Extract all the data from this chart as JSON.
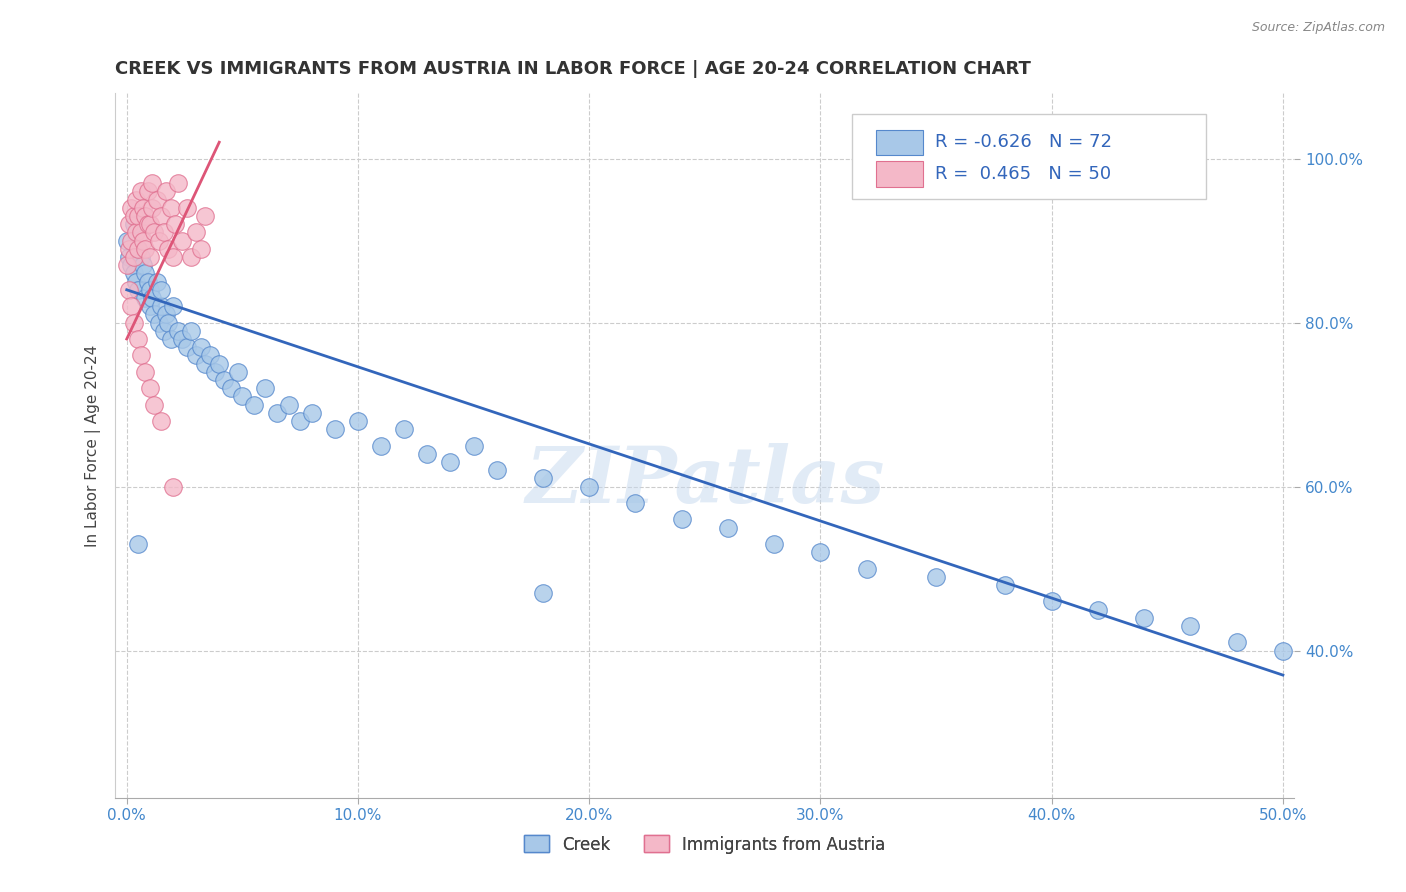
{
  "title": "CREEK VS IMMIGRANTS FROM AUSTRIA IN LABOR FORCE | AGE 20-24 CORRELATION CHART",
  "source": "Source: ZipAtlas.com",
  "ylabel": "In Labor Force | Age 20-24",
  "xlim": [
    -0.005,
    0.505
  ],
  "ylim": [
    0.22,
    1.08
  ],
  "xticks": [
    0.0,
    0.1,
    0.2,
    0.3,
    0.4,
    0.5
  ],
  "xticklabels": [
    "0.0%",
    "10.0%",
    "20.0%",
    "30.0%",
    "40.0%",
    "50.0%"
  ],
  "yticks": [
    0.4,
    0.6,
    0.8,
    1.0
  ],
  "yticklabels": [
    "40.0%",
    "60.0%",
    "80.0%",
    "100.0%"
  ],
  "creek_color": "#a8c8e8",
  "austria_color": "#f4b8c8",
  "creek_edge": "#5588cc",
  "austria_edge": "#e07090",
  "trend_creek_color": "#3366bb",
  "trend_austria_color": "#dd5577",
  "creek_R": -0.626,
  "creek_N": 72,
  "austria_R": 0.465,
  "austria_N": 50,
  "creek_trend_x0": 0.0,
  "creek_trend_y0": 0.84,
  "creek_trend_x1": 0.5,
  "creek_trend_y1": 0.37,
  "austria_trend_x0": 0.0,
  "austria_trend_y0": 0.78,
  "austria_trend_x1": 0.04,
  "austria_trend_y1": 1.02,
  "creek_x": [
    0.0,
    0.001,
    0.002,
    0.003,
    0.003,
    0.004,
    0.005,
    0.005,
    0.006,
    0.007,
    0.008,
    0.008,
    0.009,
    0.01,
    0.01,
    0.011,
    0.012,
    0.013,
    0.014,
    0.015,
    0.015,
    0.016,
    0.017,
    0.018,
    0.019,
    0.02,
    0.022,
    0.024,
    0.026,
    0.028,
    0.03,
    0.032,
    0.034,
    0.036,
    0.038,
    0.04,
    0.042,
    0.045,
    0.048,
    0.05,
    0.055,
    0.06,
    0.065,
    0.07,
    0.075,
    0.08,
    0.09,
    0.1,
    0.11,
    0.12,
    0.13,
    0.14,
    0.15,
    0.16,
    0.18,
    0.2,
    0.22,
    0.24,
    0.26,
    0.28,
    0.3,
    0.32,
    0.35,
    0.38,
    0.4,
    0.42,
    0.44,
    0.46,
    0.48,
    0.5,
    0.005,
    0.18
  ],
  "creek_y": [
    0.9,
    0.88,
    0.87,
    0.86,
    0.92,
    0.85,
    0.89,
    0.84,
    0.88,
    0.87,
    0.86,
    0.83,
    0.85,
    0.84,
    0.82,
    0.83,
    0.81,
    0.85,
    0.8,
    0.82,
    0.84,
    0.79,
    0.81,
    0.8,
    0.78,
    0.82,
    0.79,
    0.78,
    0.77,
    0.79,
    0.76,
    0.77,
    0.75,
    0.76,
    0.74,
    0.75,
    0.73,
    0.72,
    0.74,
    0.71,
    0.7,
    0.72,
    0.69,
    0.7,
    0.68,
    0.69,
    0.67,
    0.68,
    0.65,
    0.67,
    0.64,
    0.63,
    0.65,
    0.62,
    0.61,
    0.6,
    0.58,
    0.56,
    0.55,
    0.53,
    0.52,
    0.5,
    0.49,
    0.48,
    0.46,
    0.45,
    0.44,
    0.43,
    0.41,
    0.4,
    0.53,
    0.47
  ],
  "austria_x": [
    0.0,
    0.001,
    0.001,
    0.002,
    0.002,
    0.003,
    0.003,
    0.004,
    0.004,
    0.005,
    0.005,
    0.006,
    0.006,
    0.007,
    0.007,
    0.008,
    0.008,
    0.009,
    0.009,
    0.01,
    0.01,
    0.011,
    0.011,
    0.012,
    0.013,
    0.014,
    0.015,
    0.016,
    0.017,
    0.018,
    0.019,
    0.02,
    0.021,
    0.022,
    0.024,
    0.026,
    0.028,
    0.03,
    0.032,
    0.034,
    0.001,
    0.002,
    0.003,
    0.005,
    0.006,
    0.008,
    0.01,
    0.012,
    0.015,
    0.02
  ],
  "austria_y": [
    0.87,
    0.89,
    0.92,
    0.9,
    0.94,
    0.88,
    0.93,
    0.91,
    0.95,
    0.89,
    0.93,
    0.91,
    0.96,
    0.9,
    0.94,
    0.89,
    0.93,
    0.92,
    0.96,
    0.88,
    0.92,
    0.94,
    0.97,
    0.91,
    0.95,
    0.9,
    0.93,
    0.91,
    0.96,
    0.89,
    0.94,
    0.88,
    0.92,
    0.97,
    0.9,
    0.94,
    0.88,
    0.91,
    0.89,
    0.93,
    0.84,
    0.82,
    0.8,
    0.78,
    0.76,
    0.74,
    0.72,
    0.7,
    0.68,
    0.6
  ],
  "watermark": "ZIPatlas",
  "title_fontsize": 13,
  "axis_label_fontsize": 11,
  "tick_fontsize": 11,
  "legend_fontsize": 13,
  "background_color": "#ffffff",
  "grid_color": "#cccccc"
}
